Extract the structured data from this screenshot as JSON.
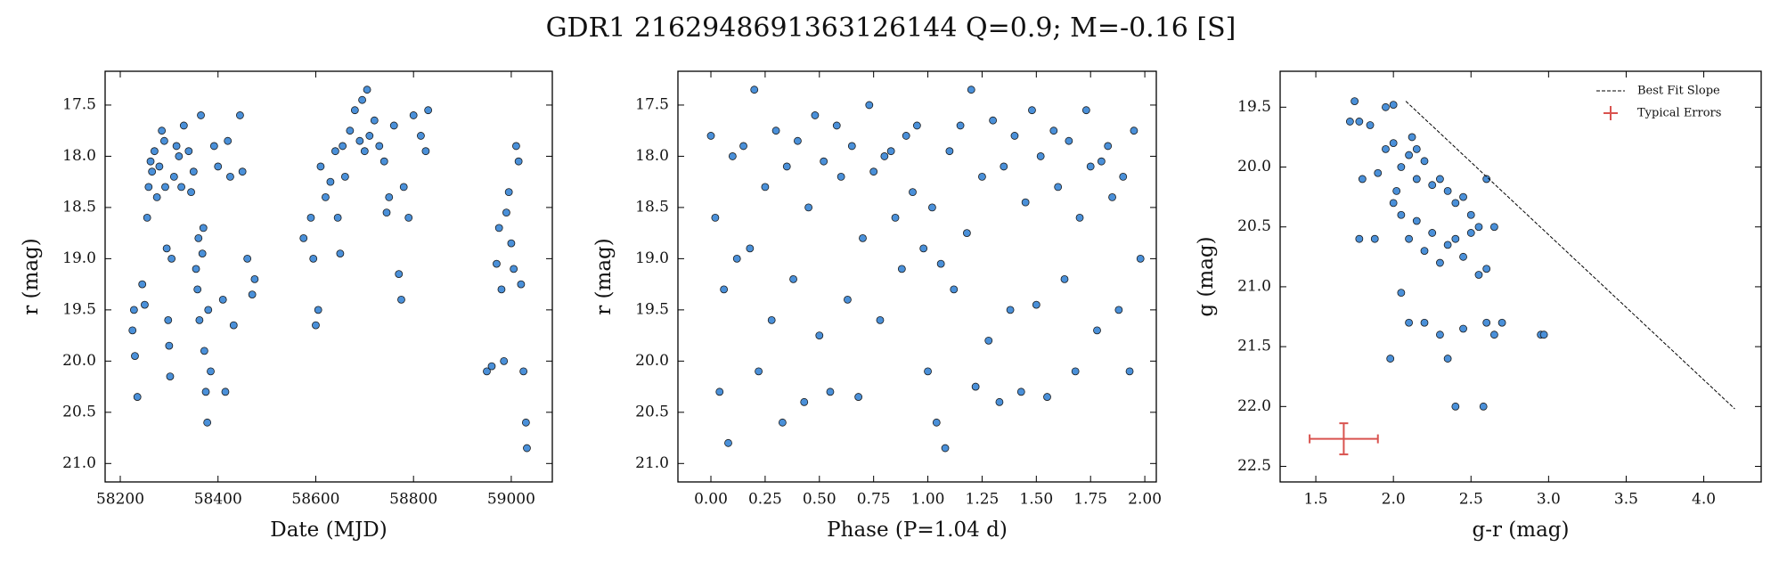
{
  "title": "GDR1 2162948691363126144  Q=0.9; M=-0.16 [S]",
  "chart_data": [
    {
      "type": "scatter",
      "x_label": "Date (MJD)",
      "y_label": "r (mag)",
      "color": "#4a90d9",
      "xlim": [
        58169,
        59084
      ],
      "ylim": [
        21.18,
        17.17
      ],
      "xticks": [
        58200,
        58400,
        58600,
        58800,
        59000
      ],
      "yticks": [
        {
          "value": 17.5,
          "label": "17.5"
        },
        {
          "value": 18,
          "label": "18.0"
        },
        {
          "value": 18.5,
          "label": "18.5"
        },
        {
          "value": 19,
          "label": "19.0"
        },
        {
          "value": 19.5,
          "label": "19.5"
        },
        {
          "value": 20,
          "label": "20.0"
        },
        {
          "value": 20.5,
          "label": "20.5"
        },
        {
          "value": 21,
          "label": "21.0"
        }
      ],
      "x": [
        58225,
        58228,
        58230,
        58235,
        58245,
        58250,
        58255,
        58258,
        58262,
        58265,
        58270,
        58275,
        58280,
        58285,
        58290,
        58292,
        58295,
        58298,
        58300,
        58302,
        58305,
        58310,
        58315,
        58320,
        58325,
        58330,
        58340,
        58345,
        58350,
        58355,
        58358,
        58360,
        58362,
        58365,
        58368,
        58370,
        58372,
        58375,
        58378,
        58380,
        58385,
        58392,
        58400,
        58410,
        58415,
        58420,
        58425,
        58432,
        58445,
        58450,
        58460,
        58470,
        58475,
        58575,
        58590,
        58595,
        58600,
        58605,
        58610,
        58620,
        58630,
        58640,
        58645,
        58650,
        58655,
        58660,
        58670,
        58680,
        58690,
        58695,
        58700,
        58705,
        58710,
        58720,
        58730,
        58740,
        58745,
        58750,
        58760,
        58770,
        58775,
        58780,
        58790,
        58800,
        58815,
        58825,
        58830,
        58950,
        58960,
        58970,
        58975,
        58980,
        58985,
        58990,
        58995,
        59000,
        59005,
        59010,
        59015,
        59020,
        59025,
        59030,
        59032
      ],
      "values": [
        19.7,
        19.5,
        19.95,
        20.35,
        19.25,
        19.45,
        18.6,
        18.3,
        18.05,
        18.15,
        17.95,
        18.4,
        18.1,
        17.75,
        17.85,
        18.3,
        18.9,
        19.6,
        19.85,
        20.15,
        19.0,
        18.2,
        17.9,
        18.0,
        18.3,
        17.7,
        17.95,
        18.35,
        18.15,
        19.1,
        19.3,
        18.8,
        19.6,
        17.6,
        18.95,
        18.7,
        19.9,
        20.3,
        20.6,
        19.5,
        20.1,
        17.9,
        18.1,
        19.4,
        20.3,
        17.85,
        18.2,
        19.65,
        17.6,
        18.15,
        19.0,
        19.35,
        19.2,
        18.8,
        18.6,
        19.0,
        19.65,
        19.5,
        18.1,
        18.4,
        18.25,
        17.95,
        18.6,
        18.95,
        17.9,
        18.2,
        17.75,
        17.55,
        17.85,
        17.45,
        17.95,
        17.35,
        17.8,
        17.65,
        17.9,
        18.05,
        18.55,
        18.4,
        17.7,
        19.15,
        19.4,
        18.3,
        18.6,
        17.6,
        17.8,
        17.95,
        17.55,
        20.1,
        20.05,
        19.05,
        18.7,
        19.3,
        20.0,
        18.55,
        18.35,
        18.85,
        19.1,
        17.9,
        18.05,
        19.25,
        20.1,
        20.6,
        20.85
      ]
    },
    {
      "type": "scatter",
      "x_label": "Phase (P=1.04 d)",
      "y_label": "r (mag)",
      "color": "#4a90d9",
      "xlim": [
        -0.152,
        2.053
      ],
      "ylim": [
        21.18,
        17.17
      ],
      "xticks": [
        {
          "value": 0,
          "label": "0.00"
        },
        {
          "value": 0.25,
          "label": "0.25"
        },
        {
          "value": 0.5,
          "label": "0.50"
        },
        {
          "value": 0.75,
          "label": "0.75"
        },
        {
          "value": 1,
          "label": "1.00"
        },
        {
          "value": 1.25,
          "label": "1.25"
        },
        {
          "value": 1.5,
          "label": "1.50"
        },
        {
          "value": 1.75,
          "label": "1.75"
        },
        {
          "value": 2,
          "label": "2.00"
        }
      ],
      "yticks": [
        {
          "value": 17.5,
          "label": "17.5"
        },
        {
          "value": 18,
          "label": "18.0"
        },
        {
          "value": 18.5,
          "label": "18.5"
        },
        {
          "value": 19,
          "label": "19.0"
        },
        {
          "value": 19.5,
          "label": "19.5"
        },
        {
          "value": 20,
          "label": "20.0"
        },
        {
          "value": 20.5,
          "label": "20.5"
        },
        {
          "value": 21,
          "label": "21.0"
        }
      ],
      "x": [
        0.0,
        0.02,
        0.04,
        0.06,
        0.08,
        0.1,
        0.12,
        0.15,
        0.18,
        0.2,
        0.22,
        0.25,
        0.28,
        0.3,
        0.33,
        0.35,
        0.38,
        0.4,
        0.43,
        0.45,
        0.48,
        0.5,
        0.52,
        0.55,
        0.58,
        0.6,
        0.63,
        0.65,
        0.68,
        0.7,
        0.73,
        0.75,
        0.78,
        0.8,
        0.83,
        0.85,
        0.88,
        0.9,
        0.93,
        0.95,
        0.98,
        1.0,
        1.02,
        1.04,
        1.06,
        1.08,
        1.1,
        1.12,
        1.15,
        1.18,
        1.2,
        1.22,
        1.25,
        1.28,
        1.3,
        1.33,
        1.35,
        1.38,
        1.4,
        1.43,
        1.45,
        1.48,
        1.5,
        1.52,
        1.55,
        1.58,
        1.6,
        1.63,
        1.65,
        1.68,
        1.7,
        1.73,
        1.75,
        1.78,
        1.8,
        1.83,
        1.85,
        1.88,
        1.9,
        1.93,
        1.95,
        1.98
      ],
      "values": [
        17.8,
        18.6,
        20.3,
        19.3,
        20.8,
        18.0,
        19.0,
        17.9,
        18.9,
        17.35,
        20.1,
        18.3,
        19.6,
        17.75,
        20.6,
        18.1,
        19.2,
        17.85,
        20.4,
        18.5,
        17.6,
        19.75,
        18.05,
        20.3,
        17.7,
        18.2,
        19.4,
        17.9,
        20.35,
        18.8,
        17.5,
        18.15,
        19.6,
        18.0,
        17.95,
        18.6,
        19.1,
        17.8,
        18.35,
        17.7,
        18.9,
        20.1,
        18.5,
        20.6,
        19.05,
        20.85,
        17.95,
        19.3,
        17.7,
        18.75,
        17.35,
        20.25,
        18.2,
        19.8,
        17.65,
        20.4,
        18.1,
        19.5,
        17.8,
        20.3,
        18.45,
        17.55,
        19.45,
        18.0,
        20.35,
        17.75,
        18.3,
        19.2,
        17.85,
        20.1,
        18.6,
        17.55,
        18.1,
        19.7,
        18.05,
        17.9,
        18.4,
        19.5,
        18.2,
        20.1,
        17.75,
        19.0
      ]
    },
    {
      "type": "scatter",
      "x_label": "g-r (mag)",
      "y_label": "g (mag)",
      "color": "#4a90d9",
      "xlim": [
        1.27,
        4.37
      ],
      "ylim": [
        22.63,
        19.2
      ],
      "xticks": [
        {
          "value": 1.5,
          "label": "1.5"
        },
        {
          "value": 2,
          "label": "2.0"
        },
        {
          "value": 2.5,
          "label": "2.5"
        },
        {
          "value": 3,
          "label": "3.0"
        },
        {
          "value": 3.5,
          "label": "3.5"
        },
        {
          "value": 4,
          "label": "4.0"
        }
      ],
      "yticks": [
        {
          "value": 19.5,
          "label": "19.5"
        },
        {
          "value": 20,
          "label": "20.0"
        },
        {
          "value": 20.5,
          "label": "20.5"
        },
        {
          "value": 21,
          "label": "21.0"
        },
        {
          "value": 21.5,
          "label": "21.5"
        },
        {
          "value": 22,
          "label": "22.0"
        },
        {
          "value": 22.5,
          "label": "22.5"
        }
      ],
      "x": [
        1.75,
        1.78,
        1.72,
        1.85,
        1.95,
        2.0,
        1.8,
        1.9,
        1.95,
        2.0,
        2.05,
        2.1,
        2.12,
        2.15,
        2.2,
        2.25,
        2.3,
        2.35,
        2.4,
        2.45,
        2.5,
        2.55,
        2.6,
        2.65,
        2.0,
        2.05,
        2.1,
        2.15,
        2.2,
        2.25,
        2.3,
        2.35,
        2.4,
        2.45,
        2.5,
        2.55,
        2.6,
        1.78,
        1.88,
        2.05,
        2.1,
        2.2,
        2.3,
        2.35,
        2.45,
        2.6,
        2.65,
        2.7,
        2.95,
        2.97,
        1.98,
        2.4,
        2.58,
        2.02,
        2.15
      ],
      "values": [
        19.45,
        19.62,
        19.62,
        19.65,
        19.5,
        19.48,
        20.1,
        20.05,
        19.85,
        19.8,
        20.0,
        19.9,
        19.75,
        20.1,
        19.95,
        20.15,
        20.1,
        20.2,
        20.3,
        20.25,
        20.4,
        20.5,
        20.1,
        20.5,
        20.3,
        20.4,
        20.6,
        20.45,
        20.7,
        20.55,
        20.8,
        20.65,
        20.6,
        20.75,
        20.55,
        20.9,
        20.85,
        20.6,
        20.6,
        21.05,
        21.3,
        21.3,
        21.4,
        21.6,
        21.35,
        21.3,
        21.4,
        21.3,
        21.4,
        21.4,
        21.6,
        22.0,
        22.0,
        20.2,
        19.85
      ],
      "legend": "upper right",
      "fit_line": {
        "name": "Best Fit Slope",
        "color": "#000000",
        "x": [
          2.08,
          4.2
        ],
        "values": [
          19.45,
          22.02
        ]
      },
      "typical_error": {
        "name": "Typical Errors",
        "color": "#d9534f",
        "x": 1.68,
        "y": 22.27,
        "xerr": 0.22,
        "yerr": 0.13
      }
    }
  ]
}
